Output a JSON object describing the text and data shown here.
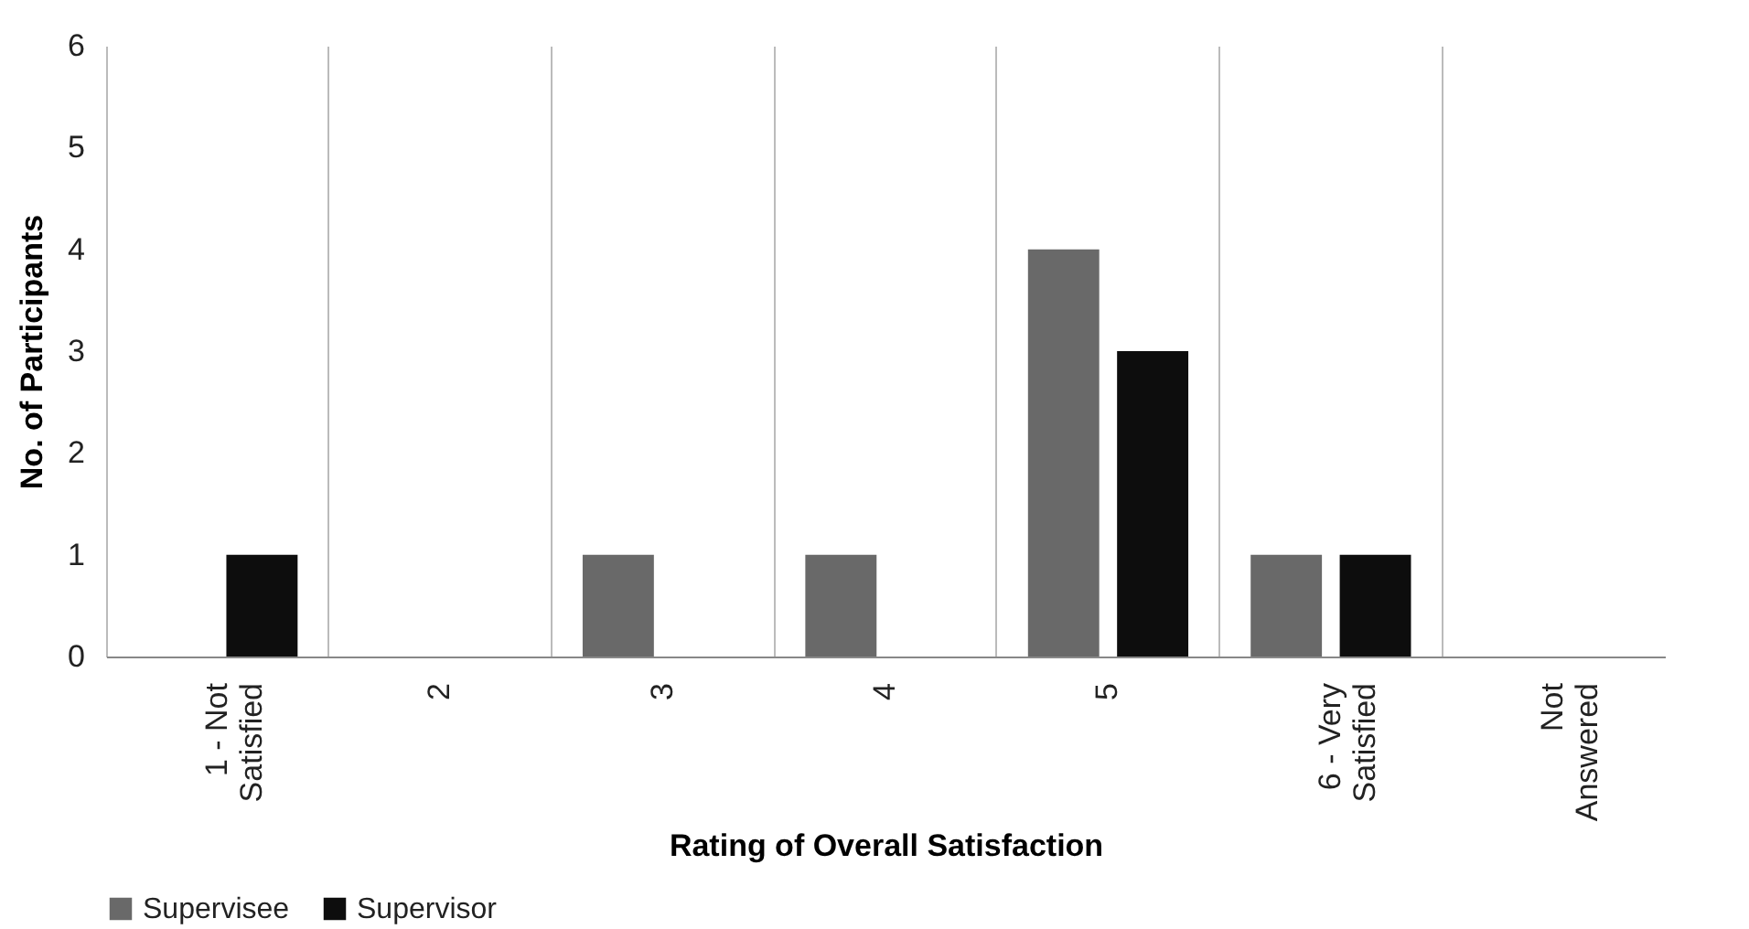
{
  "chart_data": {
    "type": "bar",
    "xlabel": "Rating of Overall Satisfaction",
    "ylabel": "No. of Participants",
    "categories": [
      "1 - Not Satisfied",
      "2",
      "3",
      "4",
      "5",
      "6 - Very Satisfied",
      "Not Answered"
    ],
    "series": [
      {
        "name": "Supervisee",
        "color": "#696969",
        "values": [
          0,
          0,
          1,
          1,
          4,
          1,
          0
        ]
      },
      {
        "name": "Supervisor",
        "color": "#0d0d0d",
        "values": [
          1,
          0,
          0,
          0,
          3,
          1,
          0
        ]
      }
    ],
    "ylim": [
      0,
      6
    ],
    "yticks": [
      0,
      1,
      2,
      3,
      4,
      5,
      6
    ],
    "grid": "x",
    "legend": "bottom"
  }
}
